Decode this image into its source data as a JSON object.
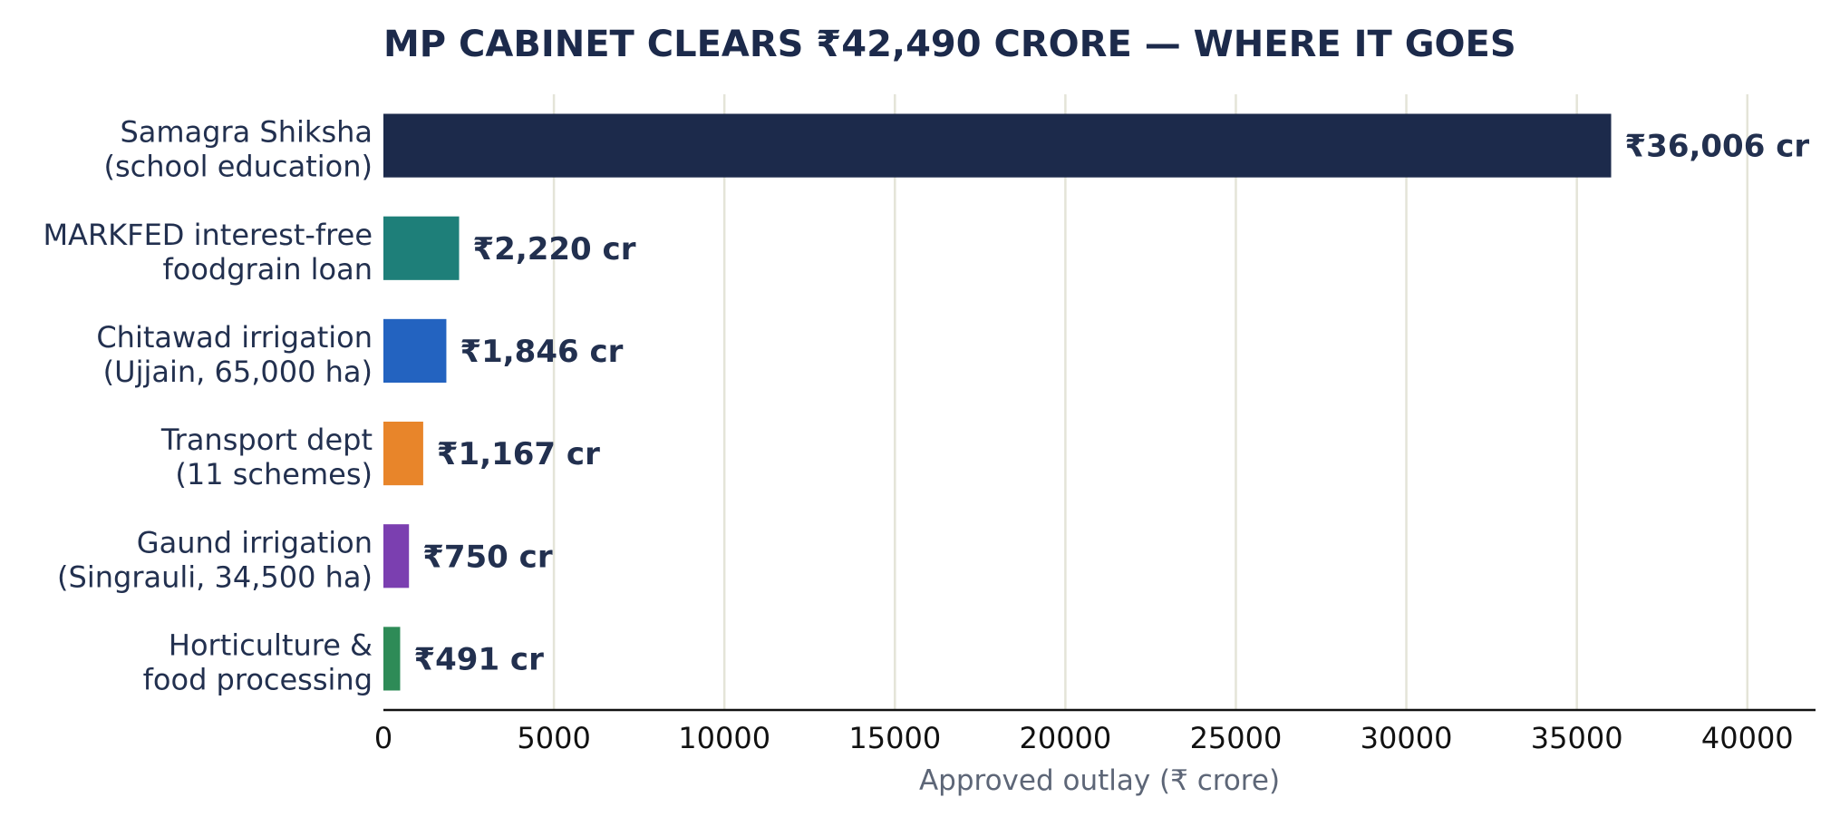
{
  "chart_data": {
    "type": "bar",
    "orientation": "horizontal",
    "title": "MP CABINET CLEARS ₹42,490 CRORE  —  WHERE IT GOES",
    "xlabel": "Approved outlay (₹ crore)",
    "ylabel": "",
    "xlim": [
      0,
      42000
    ],
    "xticks": [
      "0",
      "5000",
      "10000",
      "15000",
      "20000",
      "25000",
      "30000",
      "35000",
      "40000"
    ],
    "grid": "vertical",
    "categories": [
      [
        "Samagra Shiksha",
        "(school education)"
      ],
      [
        "MARKFED interest-free",
        "foodgrain loan"
      ],
      [
        "Chitawad irrigation",
        "(Ujjain, 65,000 ha)"
      ],
      [
        "Transport dept",
        "(11 schemes)"
      ],
      [
        "Gaund irrigation",
        "(Singrauli, 34,500 ha)"
      ],
      [
        "Horticulture &",
        "food processing"
      ]
    ],
    "values": [
      36006,
      2220,
      1846,
      1167,
      750,
      491
    ],
    "value_labels": [
      "₹36,006 cr",
      "₹2,220 cr",
      "₹1,846 cr",
      "₹1,167 cr",
      "₹750 cr",
      "₹491 cr"
    ],
    "colors": [
      "#1c2a4b",
      "#1e7f79",
      "#2363c0",
      "#e8852a",
      "#7b3fb0",
      "#2e8b57"
    ]
  }
}
